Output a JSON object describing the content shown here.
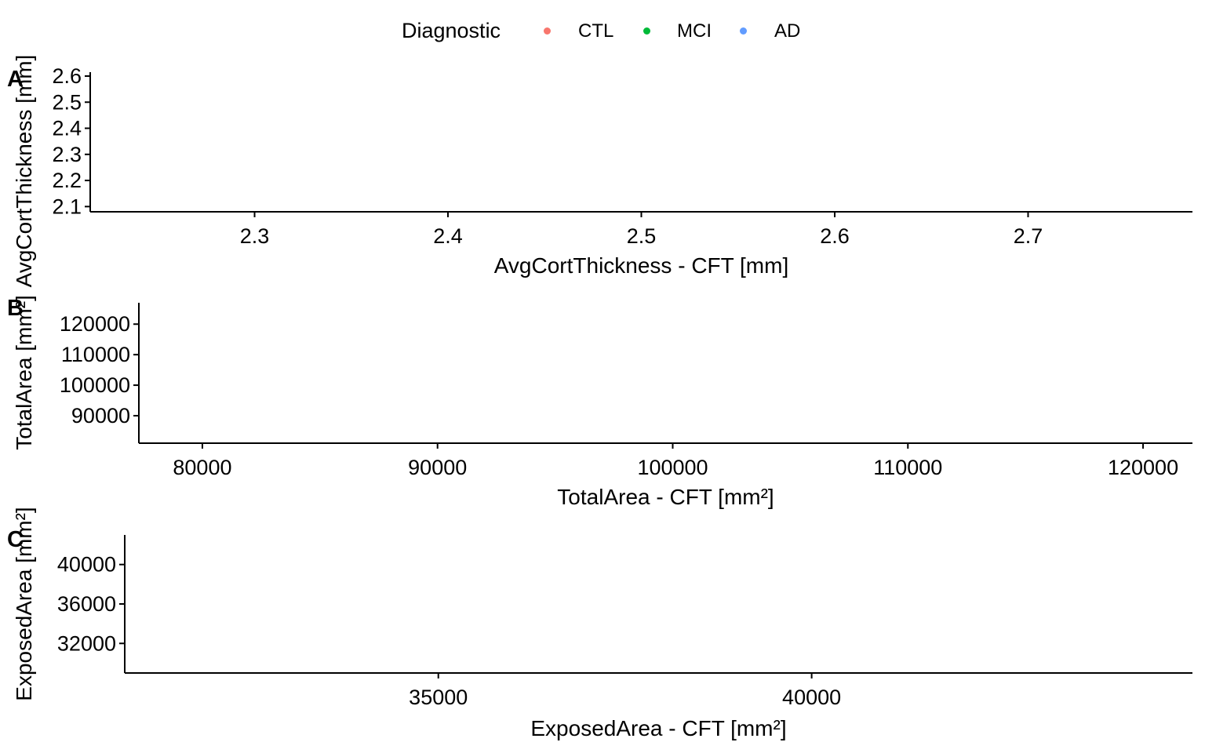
{
  "legend": {
    "title": "Diagnostic",
    "items": [
      {
        "label": "CTL",
        "color": "#F8766D"
      },
      {
        "label": "MCI",
        "color": "#00BA38"
      },
      {
        "label": "AD",
        "color": "#619CFF"
      }
    ]
  },
  "chart_data": [
    {
      "type": "scatter",
      "panel": "A",
      "xlabel": "AvgCortThickness - CFT [mm]",
      "ylabel": "AvgCortThickness [mm]",
      "xlim": [
        2.215,
        2.785
      ],
      "ylim": [
        2.08,
        2.615
      ],
      "xticks": [
        2.3,
        2.4,
        2.5,
        2.6,
        2.7
      ],
      "yticks": [
        2.1,
        2.2,
        2.3,
        2.4,
        2.5,
        2.6
      ],
      "xtick_labels": [
        "2.3",
        "2.4",
        "2.5",
        "2.6",
        "2.7"
      ],
      "ytick_labels": [
        "2.1",
        "2.2",
        "2.3",
        "2.4",
        "2.5",
        "2.6"
      ],
      "series": [],
      "grid": false
    },
    {
      "type": "scatter",
      "panel": "B",
      "xlabel": "TotalArea - CFT [mm²]",
      "ylabel": "TotalArea [mm²]",
      "xlim": [
        77300,
        122100
      ],
      "ylim": [
        81000,
        127000
      ],
      "xticks": [
        80000,
        90000,
        100000,
        110000,
        120000
      ],
      "yticks": [
        90000,
        100000,
        110000,
        120000
      ],
      "xtick_labels": [
        "80000",
        "90000",
        "100000",
        "110000",
        "120000"
      ],
      "ytick_labels": [
        "90000",
        "100000",
        "110000",
        "120000"
      ],
      "series": [],
      "grid": false
    },
    {
      "type": "scatter",
      "panel": "C",
      "xlabel": "ExposedArea - CFT [mm²]",
      "ylabel": "ExposedArea [mm²]",
      "xlim": [
        30800,
        45100
      ],
      "ylim": [
        29000,
        43000
      ],
      "xticks": [
        35000,
        40000
      ],
      "yticks": [
        32000,
        36000,
        40000
      ],
      "xtick_labels": [
        "35000",
        "40000"
      ],
      "ytick_labels": [
        "32000",
        "36000",
        "40000"
      ],
      "series": [],
      "grid": false
    }
  ]
}
